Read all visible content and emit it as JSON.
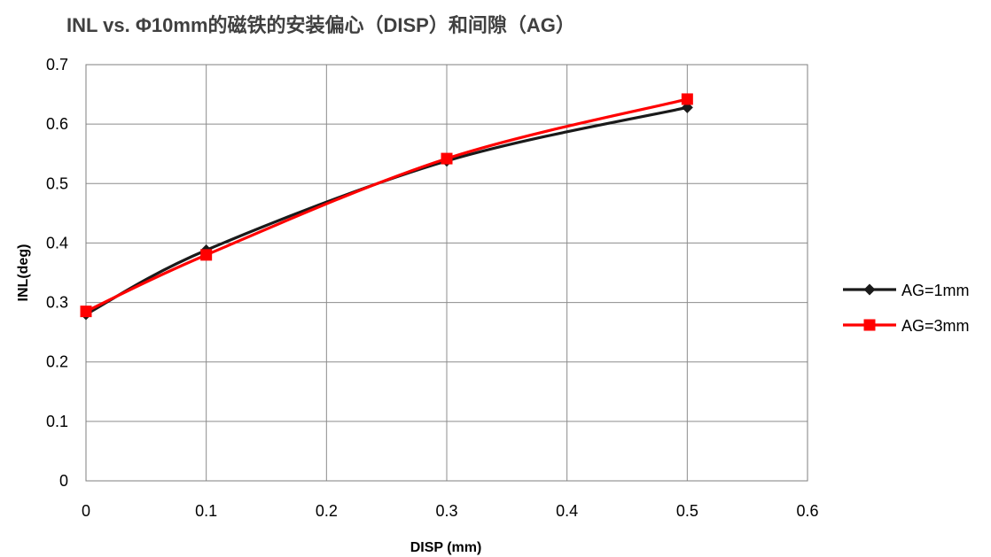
{
  "chart_data": {
    "type": "line",
    "title": "INL vs. Φ10mm的磁铁的安装偏心（DISP）和间隙（AG）",
    "xlabel": "DISP (mm)",
    "ylabel": "INL(deg)",
    "xlim": [
      0,
      0.6
    ],
    "ylim": [
      0,
      0.7
    ],
    "x_ticks": [
      "0",
      "0.1",
      "0.2",
      "0.3",
      "0.4",
      "0.5",
      "0.6"
    ],
    "y_ticks": [
      "0",
      "0.1",
      "0.2",
      "0.3",
      "0.4",
      "0.5",
      "0.6",
      "0.7"
    ],
    "x_tick_values": [
      0,
      0.1,
      0.2,
      0.3,
      0.4,
      0.5,
      0.6
    ],
    "y_tick_values": [
      0,
      0.1,
      0.2,
      0.3,
      0.4,
      0.5,
      0.6,
      0.7
    ],
    "grid": true,
    "legend_position": "right",
    "series": [
      {
        "name": "AG=1mm",
        "x": [
          0,
          0.1,
          0.3,
          0.5
        ],
        "y": [
          0.28,
          0.388,
          0.538,
          0.628
        ],
        "color": "#1a1a1a",
        "marker": "diamond"
      },
      {
        "name": "AG=3mm",
        "x": [
          0,
          0.1,
          0.3,
          0.5
        ],
        "y": [
          0.285,
          0.38,
          0.542,
          0.642
        ],
        "color": "#ff0000",
        "marker": "square"
      }
    ]
  }
}
